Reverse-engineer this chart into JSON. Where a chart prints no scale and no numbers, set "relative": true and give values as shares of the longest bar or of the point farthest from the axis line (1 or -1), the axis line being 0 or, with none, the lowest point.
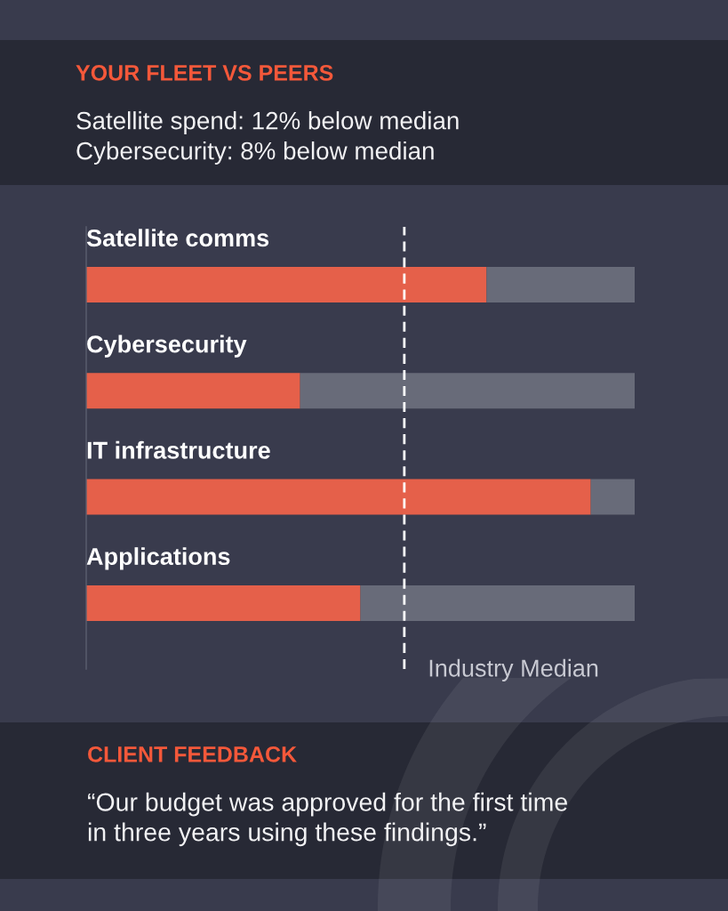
{
  "chart_data": {
    "type": "bar",
    "orientation": "horizontal",
    "stacked": true,
    "relative": true,
    "title": "YOUR FLEET VS PEERS",
    "subtitle": "Satellite spend: 12% below median\nCybersecurity: 8% below median",
    "categories": [
      "Satellite comms",
      "Cybersecurity",
      "IT infrastructure",
      "Applications"
    ],
    "series": [
      {
        "color": "#e5604a",
        "values": [
          0.73,
          0.39,
          0.92,
          0.5
        ]
      },
      {
        "color": "#686b79",
        "values": [
          0.27,
          0.61,
          0.08,
          0.5
        ]
      }
    ],
    "ref_lines": [
      {
        "axis": "x",
        "value": 0.58,
        "label": "Industry Median",
        "color": "#ffffff",
        "line_style": "dashed"
      }
    ],
    "annotations": [
      "CLIENT FEEDBACK",
      "“Our budget was approved for the first time\nin three years using these findings.”"
    ]
  }
}
